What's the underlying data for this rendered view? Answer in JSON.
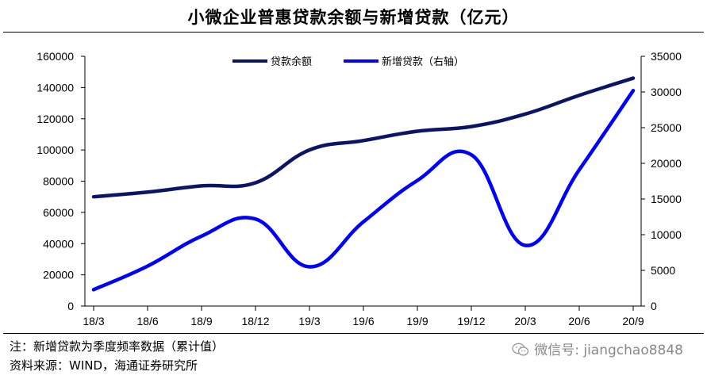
{
  "title": "小微企业普惠贷款余额与新增贷款（亿元）",
  "footer": {
    "note": "注：新增贷款为季度频率数据（累计值）",
    "source": "资料来源：WIND，海通证券研究所"
  },
  "watermark": {
    "text": "微信号: jiangchao8848",
    "icon": "wechat-icon"
  },
  "chart_data": {
    "type": "line",
    "categories": [
      "18/3",
      "18/6",
      "18/9",
      "18/12",
      "19/3",
      "19/6",
      "19/9",
      "19/12",
      "20/3",
      "20/6",
      "20/9"
    ],
    "y_left": {
      "ticks": [
        "0",
        "20000",
        "40000",
        "60000",
        "80000",
        "100000",
        "120000",
        "140000",
        "160000"
      ],
      "ylim": [
        0,
        160000
      ]
    },
    "y_right": {
      "ticks": [
        "0",
        "5000",
        "10000",
        "15000",
        "20000",
        "25000",
        "30000",
        "35000"
      ],
      "ylim": [
        0,
        35000
      ]
    },
    "legend_position": "top-center",
    "series": [
      {
        "name": "贷款余额",
        "axis": "left",
        "color": "#0b1466",
        "values": [
          70000,
          73000,
          77000,
          79000,
          100000,
          106000,
          112000,
          115000,
          123000,
          135000,
          146000
        ]
      },
      {
        "name": "新增贷款（右轴）",
        "axis": "right",
        "color": "#0000ff",
        "values": [
          2300,
          5600,
          9800,
          12200,
          5500,
          11800,
          17600,
          21200,
          8500,
          19100,
          30200
        ]
      }
    ]
  }
}
